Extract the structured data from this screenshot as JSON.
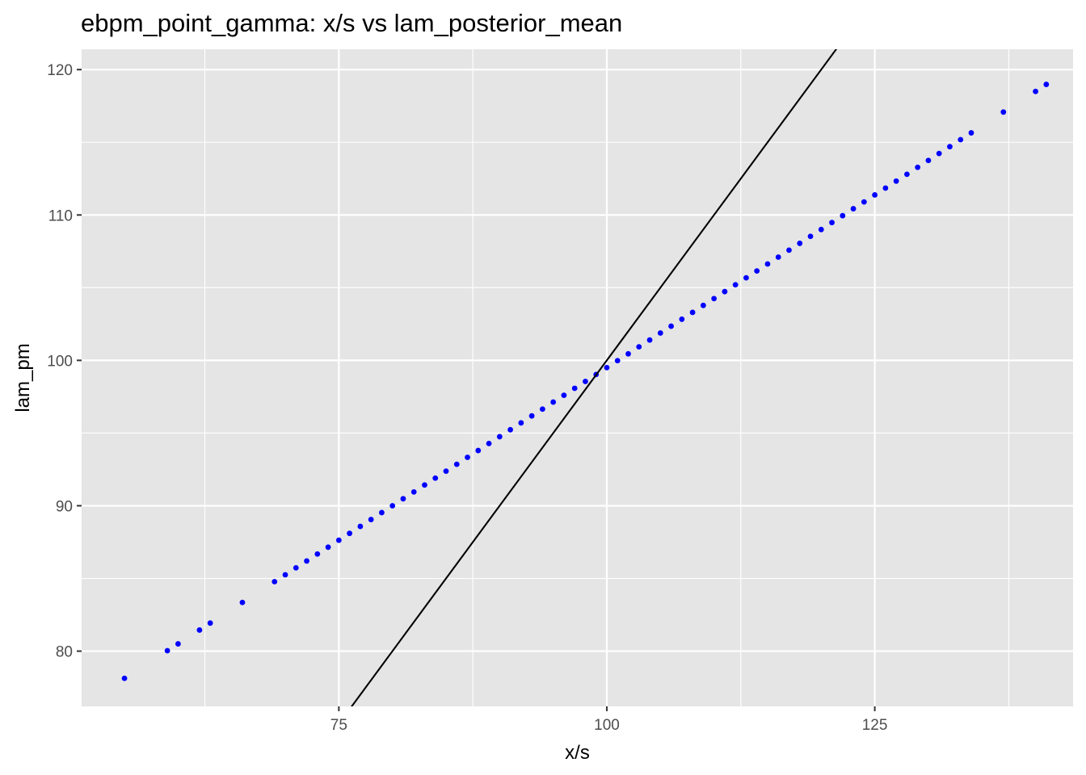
{
  "chart_data": {
    "type": "scatter",
    "title": "ebpm_point_gamma: x/s vs lam_posterior_mean",
    "xlabel": "x/s",
    "ylabel": "lam_pm",
    "xlim": [
      51,
      143.5
    ],
    "ylim": [
      76.2,
      121.4
    ],
    "x_ticks": [
      75,
      100,
      125
    ],
    "x_minor_ticks": [
      62.5,
      87.5,
      112.5,
      137.5
    ],
    "y_ticks": [
      80,
      90,
      100,
      110,
      120
    ],
    "y_minor_ticks": [
      85,
      95,
      105,
      115
    ],
    "grid": true,
    "background": "#e5e5e5",
    "grid_color": "#ffffff",
    "point_color": "#0000ff",
    "line_color": "#000000",
    "reference_line": {
      "slope": 1,
      "intercept": 0
    },
    "fit": {
      "slope": 0.475,
      "intercept": 52.5
    },
    "x": [
      55,
      59,
      60,
      62,
      63,
      66,
      69,
      70,
      71,
      72,
      73,
      74,
      75,
      76,
      77,
      78,
      79,
      80,
      81,
      82,
      83,
      84,
      85,
      86,
      87,
      88,
      89,
      90,
      91,
      92,
      93,
      94,
      95,
      96,
      97,
      98,
      99,
      100,
      101,
      102,
      103,
      104,
      105,
      106,
      107,
      108,
      109,
      110,
      111,
      112,
      113,
      114,
      115,
      116,
      117,
      118,
      119,
      120,
      121,
      122,
      123,
      124,
      125,
      126,
      127,
      128,
      129,
      130,
      131,
      132,
      133,
      134,
      137,
      140,
      141
    ],
    "y": [
      78.13,
      80.03,
      80.5,
      81.45,
      81.93,
      83.35,
      84.78,
      85.25,
      85.73,
      86.2,
      86.68,
      87.15,
      87.63,
      88.1,
      88.58,
      89.05,
      89.53,
      90.0,
      90.48,
      90.95,
      91.43,
      91.9,
      92.38,
      92.85,
      93.33,
      93.8,
      94.28,
      94.75,
      95.23,
      95.7,
      96.18,
      96.65,
      97.13,
      97.6,
      98.08,
      98.55,
      99.03,
      99.5,
      99.98,
      100.45,
      100.93,
      101.4,
      101.88,
      102.35,
      102.83,
      103.3,
      103.78,
      104.25,
      104.73,
      105.2,
      105.68,
      106.15,
      106.63,
      107.1,
      107.58,
      108.05,
      108.53,
      109.0,
      109.48,
      109.95,
      110.43,
      110.9,
      111.38,
      111.85,
      112.33,
      112.8,
      113.28,
      113.75,
      114.23,
      114.7,
      115.18,
      115.65,
      117.08,
      118.5,
      118.98
    ]
  }
}
